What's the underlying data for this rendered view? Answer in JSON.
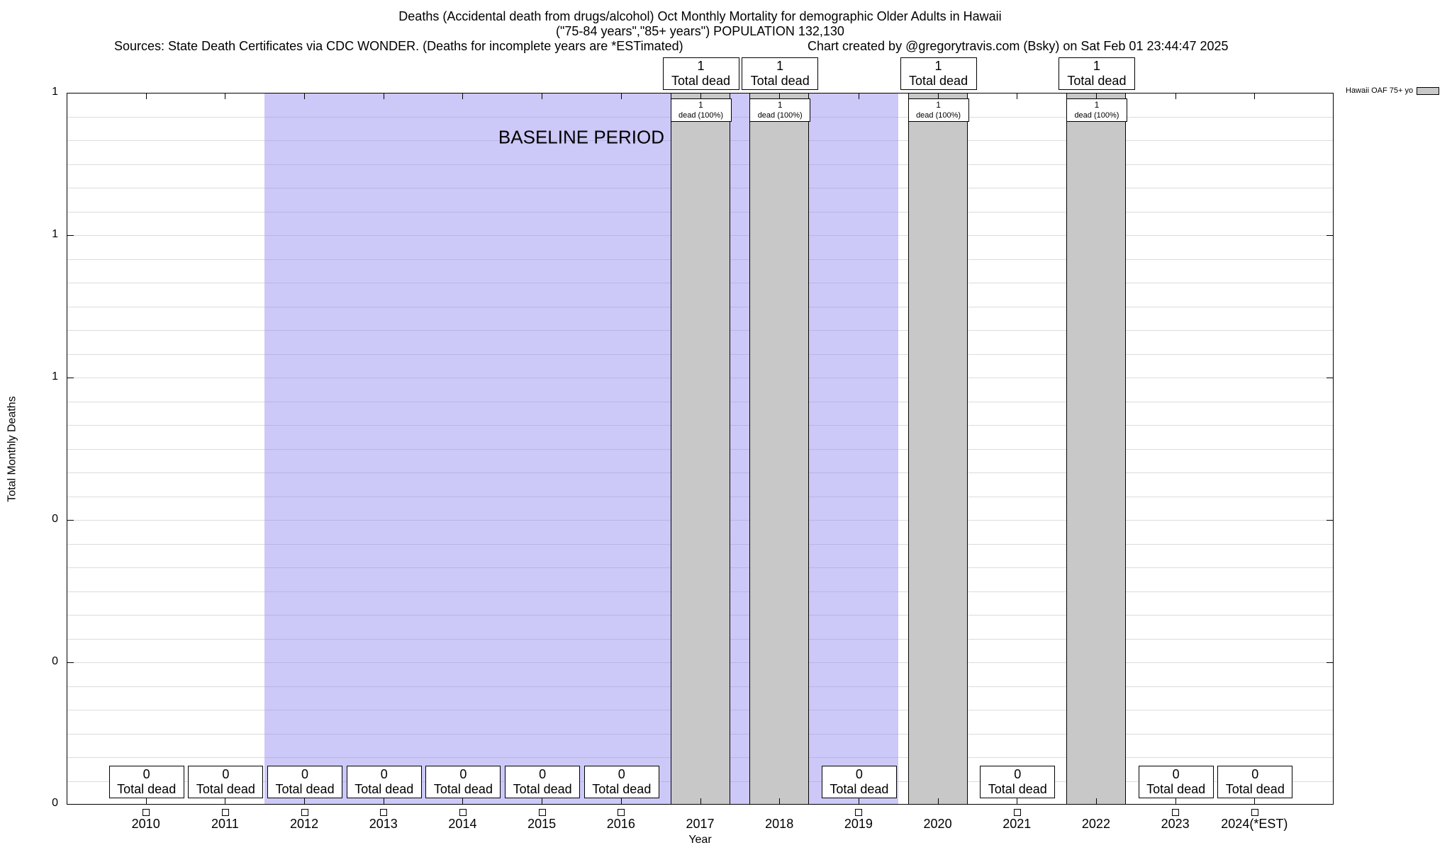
{
  "chart_data": {
    "type": "bar",
    "title": "Deaths (Accidental death from drugs/alcohol) Oct Monthly Mortality for demographic Older Adults in Hawaii",
    "subtitle": "(\"75-84 years\",\"85+ years\") POPULATION 132,130",
    "sources_note": "Sources: State Death Certificates via CDC WONDER. (Deaths for incomplete years are *ESTimated)",
    "credit_note": "Chart created by @gregorytravis.com (Bsky) on Sat Feb 01 23:44:47 2025",
    "xlabel": "Year",
    "ylabel": "Total Monthly Deaths",
    "ylim": [
      0,
      1
    ],
    "ytick_values": [
      0,
      0.2,
      0.4,
      0.6,
      0.8,
      1
    ],
    "ytick_labels_bottom_up": [
      "0",
      "0",
      "0",
      "1",
      "1",
      "1"
    ],
    "grid": true,
    "categories": [
      "2010",
      "2011",
      "2012",
      "2013",
      "2014",
      "2015",
      "2016",
      "2017",
      "2018",
      "2019",
      "2020",
      "2021",
      "2022",
      "2023",
      "2024(*EST)"
    ],
    "values": [
      0,
      0,
      0,
      0,
      0,
      0,
      0,
      1,
      1,
      0,
      1,
      0,
      1,
      0,
      0
    ],
    "bar_color": "#c8c8c8",
    "baseline_region": {
      "label": "BASELINE PERIOD",
      "start_category": "2012",
      "end_category": "2019",
      "start_index": 2,
      "end_index": 9,
      "color": "#bdb9f5"
    },
    "annotation_labels": {
      "total_dead": "Total dead",
      "dead_pct": "dead (100%)"
    },
    "legend": {
      "label": "Hawaii OAF 75+ yo",
      "position": "top-right-outside",
      "swatch_color": "#c8c8c8"
    }
  }
}
